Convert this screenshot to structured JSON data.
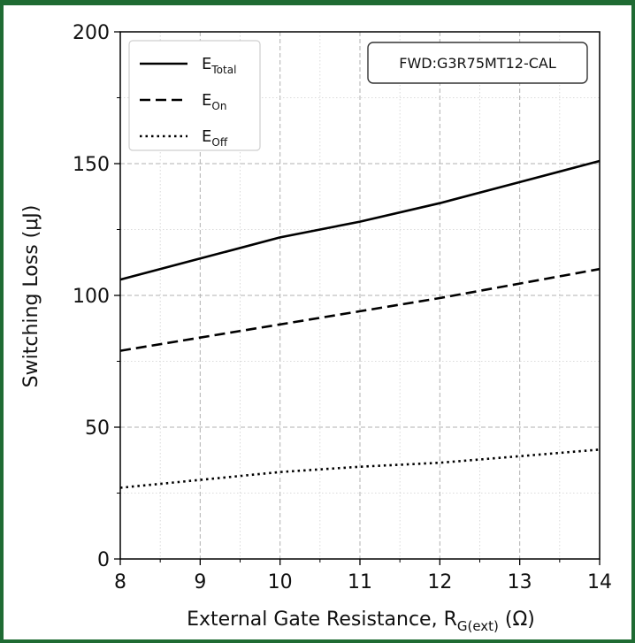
{
  "chart_data": {
    "type": "line",
    "annotation": "FWD:G3R75MT12-CAL",
    "xlabel": {
      "main": "External Gate Resistance, R",
      "sub": "G(ext)",
      "unit": " (Ω)"
    },
    "ylabel": "Switching Loss (μJ)",
    "xlim": [
      8,
      14
    ],
    "ylim": [
      0,
      200
    ],
    "xticks": [
      8,
      9,
      10,
      11,
      12,
      13,
      14
    ],
    "yticks": [
      0,
      50,
      100,
      150,
      200
    ],
    "grid": true,
    "legend_position": "top-left",
    "x": [
      8,
      9,
      10,
      11,
      12,
      13,
      14
    ],
    "series": [
      {
        "name": "E",
        "name_sub": "Total",
        "style": "solid",
        "values": [
          106,
          114,
          122,
          128,
          135,
          143,
          151
        ]
      },
      {
        "name": "E",
        "name_sub": "On",
        "style": "dashed",
        "values": [
          79,
          84,
          89,
          94,
          99,
          104.5,
          110
        ]
      },
      {
        "name": "E",
        "name_sub": "Off",
        "style": "dotted",
        "values": [
          27,
          30,
          33,
          35,
          36.5,
          39,
          41.5
        ]
      }
    ],
    "colors": {
      "lines": "#000000",
      "frame": "#1f6b33",
      "grid": "#b0b0b0"
    }
  }
}
